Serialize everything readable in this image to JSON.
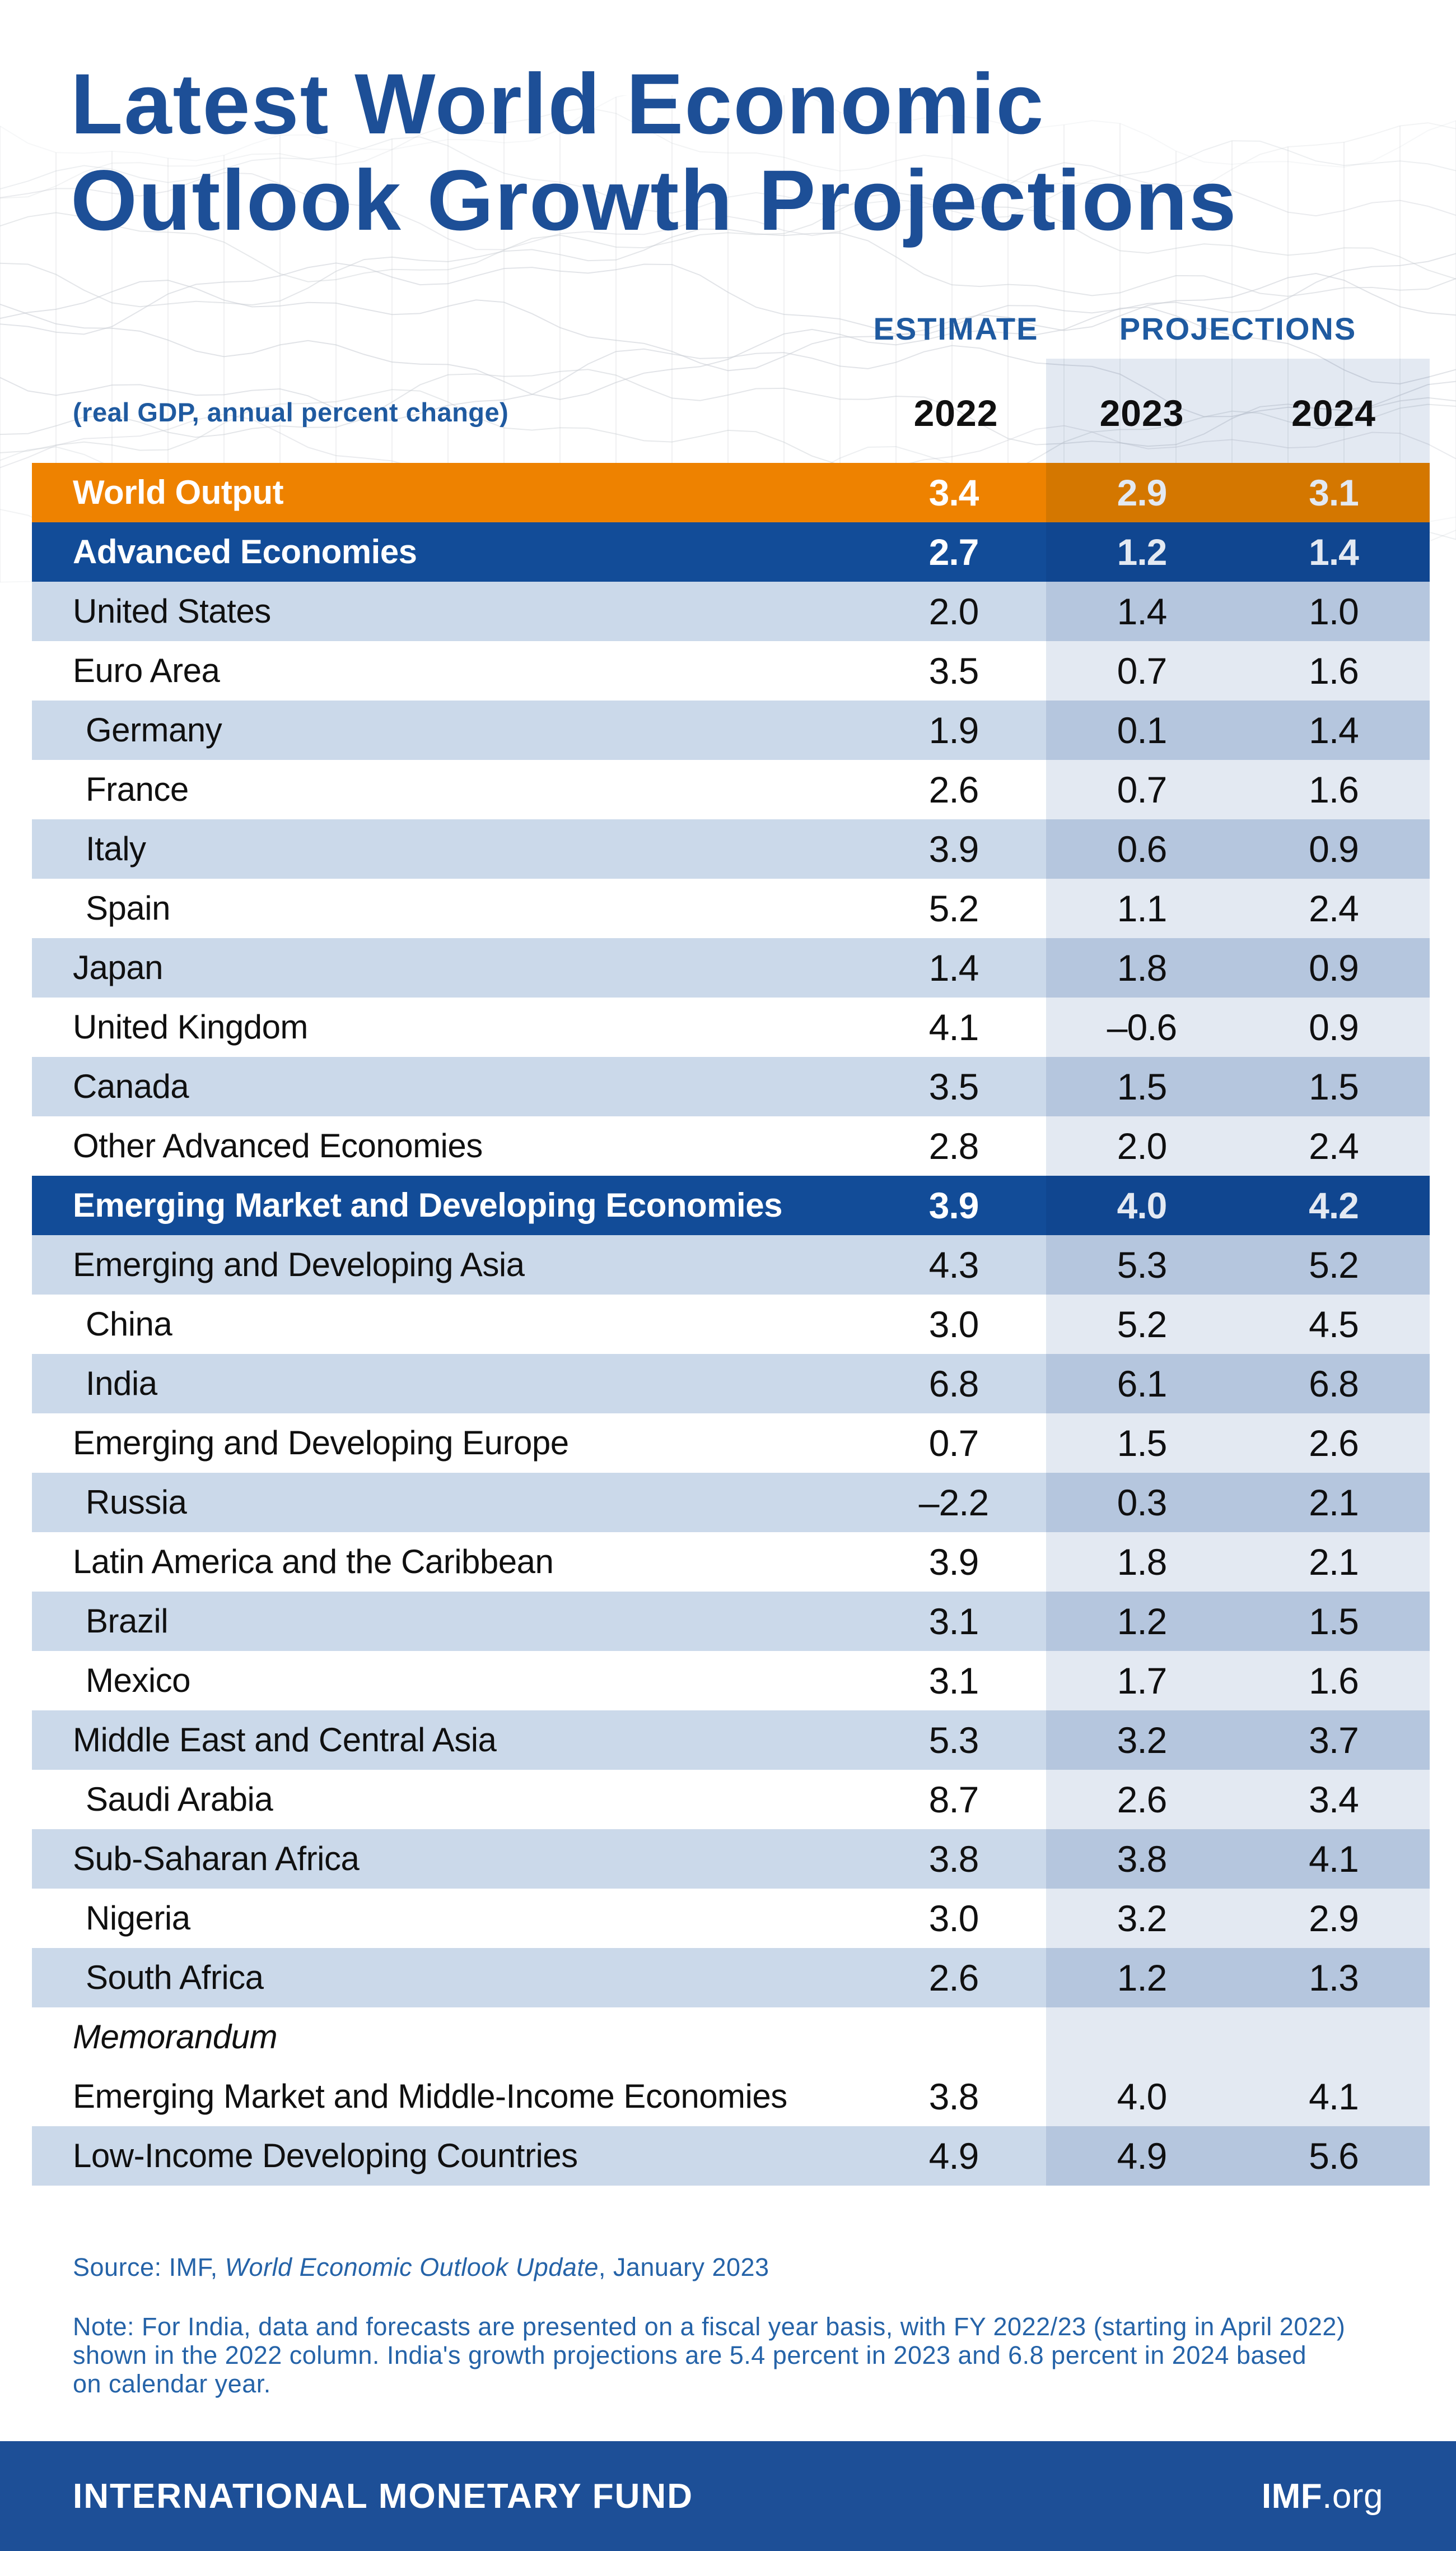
{
  "header": {
    "title_line1": "Latest World Economic",
    "title_line2": "Outlook Growth Projections",
    "estimate_label": "ESTIMATE",
    "projections_label": "PROJECTIONS",
    "subtitle": "(real GDP, annual percent change)",
    "years": [
      "2022",
      "2023",
      "2024"
    ]
  },
  "table": {
    "rows": [
      {
        "label": "World Output",
        "type": "orange",
        "indent": false,
        "italic": false,
        "values": [
          "3.4",
          "2.9",
          "3.1"
        ]
      },
      {
        "label": "Advanced Economies",
        "type": "section",
        "indent": false,
        "italic": false,
        "values": [
          "2.7",
          "1.2",
          "1.4"
        ]
      },
      {
        "label": "United States",
        "type": "light",
        "indent": false,
        "italic": false,
        "values": [
          "2.0",
          "1.4",
          "1.0"
        ]
      },
      {
        "label": "Euro Area",
        "type": "white",
        "indent": false,
        "italic": false,
        "values": [
          "3.5",
          "0.7",
          "1.6"
        ]
      },
      {
        "label": "Germany",
        "type": "light",
        "indent": true,
        "italic": false,
        "values": [
          "1.9",
          "0.1",
          "1.4"
        ]
      },
      {
        "label": "France",
        "type": "white",
        "indent": true,
        "italic": false,
        "values": [
          "2.6",
          "0.7",
          "1.6"
        ]
      },
      {
        "label": "Italy",
        "type": "light",
        "indent": true,
        "italic": false,
        "values": [
          "3.9",
          "0.6",
          "0.9"
        ]
      },
      {
        "label": "Spain",
        "type": "white",
        "indent": true,
        "italic": false,
        "values": [
          "5.2",
          "1.1",
          "2.4"
        ]
      },
      {
        "label": "Japan",
        "type": "light",
        "indent": false,
        "italic": false,
        "values": [
          "1.4",
          "1.8",
          "0.9"
        ]
      },
      {
        "label": "United Kingdom",
        "type": "white",
        "indent": false,
        "italic": false,
        "values": [
          "4.1",
          "–0.6",
          "0.9"
        ]
      },
      {
        "label": "Canada",
        "type": "light",
        "indent": false,
        "italic": false,
        "values": [
          "3.5",
          "1.5",
          "1.5"
        ]
      },
      {
        "label": "Other Advanced Economies",
        "type": "white",
        "indent": false,
        "italic": false,
        "values": [
          "2.8",
          "2.0",
          "2.4"
        ]
      },
      {
        "label": "Emerging Market and Developing Economies",
        "type": "section",
        "indent": false,
        "italic": false,
        "values": [
          "3.9",
          "4.0",
          "4.2"
        ]
      },
      {
        "label": "Emerging and Developing Asia",
        "type": "light",
        "indent": false,
        "italic": false,
        "values": [
          "4.3",
          "5.3",
          "5.2"
        ]
      },
      {
        "label": "China",
        "type": "white",
        "indent": true,
        "italic": false,
        "values": [
          "3.0",
          "5.2",
          "4.5"
        ]
      },
      {
        "label": "India",
        "type": "light",
        "indent": true,
        "italic": false,
        "values": [
          "6.8",
          "6.1",
          "6.8"
        ]
      },
      {
        "label": "Emerging and Developing Europe",
        "type": "white",
        "indent": false,
        "italic": false,
        "values": [
          "0.7",
          "1.5",
          "2.6"
        ]
      },
      {
        "label": "Russia",
        "type": "light",
        "indent": true,
        "italic": false,
        "values": [
          "–2.2",
          "0.3",
          "2.1"
        ]
      },
      {
        "label": "Latin America and the Caribbean",
        "type": "white",
        "indent": false,
        "italic": false,
        "values": [
          "3.9",
          "1.8",
          "2.1"
        ]
      },
      {
        "label": "Brazil",
        "type": "light",
        "indent": true,
        "italic": false,
        "values": [
          "3.1",
          "1.2",
          "1.5"
        ]
      },
      {
        "label": "Mexico",
        "type": "white",
        "indent": true,
        "italic": false,
        "values": [
          "3.1",
          "1.7",
          "1.6"
        ]
      },
      {
        "label": "Middle East and Central Asia",
        "type": "light",
        "indent": false,
        "italic": false,
        "values": [
          "5.3",
          "3.2",
          "3.7"
        ]
      },
      {
        "label": "Saudi Arabia",
        "type": "white",
        "indent": true,
        "italic": false,
        "values": [
          "8.7",
          "2.6",
          "3.4"
        ]
      },
      {
        "label": "Sub-Saharan Africa",
        "type": "light",
        "indent": false,
        "italic": false,
        "values": [
          "3.8",
          "3.8",
          "4.1"
        ]
      },
      {
        "label": "Nigeria",
        "type": "white",
        "indent": true,
        "italic": false,
        "values": [
          "3.0",
          "3.2",
          "2.9"
        ]
      },
      {
        "label": "South Africa",
        "type": "light",
        "indent": true,
        "italic": false,
        "values": [
          "2.6",
          "1.2",
          "1.3"
        ]
      },
      {
        "label": "Memorandum",
        "type": "white",
        "indent": false,
        "italic": true,
        "values": [
          "",
          "",
          ""
        ]
      },
      {
        "label": "Emerging Market and Middle-Income Economies",
        "type": "white",
        "indent": false,
        "italic": false,
        "values": [
          "3.8",
          "4.0",
          "4.1"
        ]
      },
      {
        "label": "Low-Income Developing Countries",
        "type": "light",
        "indent": false,
        "italic": false,
        "values": [
          "4.9",
          "4.9",
          "5.6"
        ]
      }
    ]
  },
  "footnotes": {
    "source_prefix": "Source: IMF, ",
    "source_italic": "World Economic Outlook Update",
    "source_suffix": ", January 2023",
    "note_lines": [
      "Note: For India, data and forecasts are presented on a fiscal year basis, with FY 2022/23 (starting in April 2022)",
      "shown in the 2022 column. India's growth projections are 5.4 percent in 2023 and 6.8 percent in 2024 based",
      "on calendar year."
    ]
  },
  "footer": {
    "org_name": "INTERNATIONAL MONETARY FUND",
    "site_bold": "IMF",
    "site_suffix": ".org"
  },
  "colors": {
    "brand_blue": "#1D4F97",
    "section_row_blue": "#124C98",
    "world_output_orange": "#EE8200",
    "light_row_blue": "#CBD9EA",
    "projection_band_tint": "#E3E9F2",
    "note_blue": "#2563A8"
  },
  "chart_data": {
    "type": "table",
    "title": "Latest World Economic Outlook Growth Projections",
    "subtitle": "(real GDP, annual percent change)",
    "columns": [
      "2022 (Estimate)",
      "2023 (Projection)",
      "2024 (Projection)"
    ],
    "rows": [
      {
        "name": "World Output",
        "values": [
          3.4,
          2.9,
          3.1
        ]
      },
      {
        "name": "Advanced Economies",
        "values": [
          2.7,
          1.2,
          1.4
        ]
      },
      {
        "name": "United States",
        "values": [
          2.0,
          1.4,
          1.0
        ]
      },
      {
        "name": "Euro Area",
        "values": [
          3.5,
          0.7,
          1.6
        ]
      },
      {
        "name": "Germany",
        "values": [
          1.9,
          0.1,
          1.4
        ]
      },
      {
        "name": "France",
        "values": [
          2.6,
          0.7,
          1.6
        ]
      },
      {
        "name": "Italy",
        "values": [
          3.9,
          0.6,
          0.9
        ]
      },
      {
        "name": "Spain",
        "values": [
          5.2,
          1.1,
          2.4
        ]
      },
      {
        "name": "Japan",
        "values": [
          1.4,
          1.8,
          0.9
        ]
      },
      {
        "name": "United Kingdom",
        "values": [
          4.1,
          -0.6,
          0.9
        ]
      },
      {
        "name": "Canada",
        "values": [
          3.5,
          1.5,
          1.5
        ]
      },
      {
        "name": "Other Advanced Economies",
        "values": [
          2.8,
          2.0,
          2.4
        ]
      },
      {
        "name": "Emerging Market and Developing Economies",
        "values": [
          3.9,
          4.0,
          4.2
        ]
      },
      {
        "name": "Emerging and Developing Asia",
        "values": [
          4.3,
          5.3,
          5.2
        ]
      },
      {
        "name": "China",
        "values": [
          3.0,
          5.2,
          4.5
        ]
      },
      {
        "name": "India",
        "values": [
          6.8,
          6.1,
          6.8
        ]
      },
      {
        "name": "Emerging and Developing Europe",
        "values": [
          0.7,
          1.5,
          2.6
        ]
      },
      {
        "name": "Russia",
        "values": [
          -2.2,
          0.3,
          2.1
        ]
      },
      {
        "name": "Latin America and the Caribbean",
        "values": [
          3.9,
          1.8,
          2.1
        ]
      },
      {
        "name": "Brazil",
        "values": [
          3.1,
          1.2,
          1.5
        ]
      },
      {
        "name": "Mexico",
        "values": [
          3.1,
          1.7,
          1.6
        ]
      },
      {
        "name": "Middle East and Central Asia",
        "values": [
          5.3,
          3.2,
          3.7
        ]
      },
      {
        "name": "Saudi Arabia",
        "values": [
          8.7,
          2.6,
          3.4
        ]
      },
      {
        "name": "Sub-Saharan Africa",
        "values": [
          3.8,
          3.8,
          4.1
        ]
      },
      {
        "name": "Nigeria",
        "values": [
          3.0,
          3.2,
          2.9
        ]
      },
      {
        "name": "South Africa",
        "values": [
          2.6,
          1.2,
          1.3
        ]
      },
      {
        "name": "Memorandum",
        "values": [
          null,
          null,
          null
        ]
      },
      {
        "name": "Emerging Market and Middle-Income Economies",
        "values": [
          3.8,
          4.0,
          4.1
        ]
      },
      {
        "name": "Low-Income Developing Countries",
        "values": [
          4.9,
          4.9,
          5.6
        ]
      }
    ]
  }
}
